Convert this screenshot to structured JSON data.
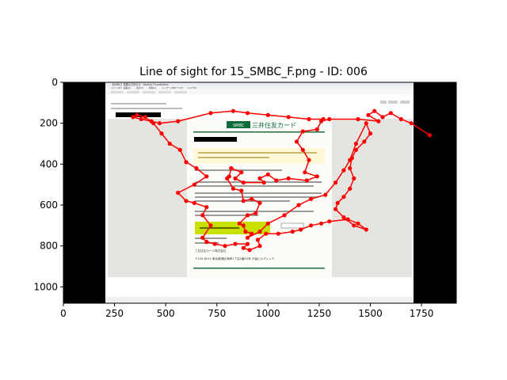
{
  "chart_data": {
    "type": "scatter",
    "title": "Line of sight for 15_SMBC_F.png - ID: 006",
    "xlabel": "",
    "ylabel": "",
    "xlim": [
      0,
      1920
    ],
    "ylim": [
      1080,
      0
    ],
    "y_inverted": true,
    "x_ticks": [
      0,
      250,
      500,
      750,
      1000,
      1250,
      1500,
      1750
    ],
    "x_tick_labels": [
      "0",
      "250",
      "500",
      "750",
      "1000",
      "1250",
      "1500",
      "1750"
    ],
    "y_ticks": [
      0,
      200,
      400,
      600,
      800,
      1000
    ],
    "y_tick_labels": [
      "0",
      "200",
      "400",
      "600",
      "800",
      "1000"
    ],
    "grid": false,
    "series": [
      {
        "color": "#ff0000",
        "marker": "circle",
        "line": true,
        "points": [
          [
            1790,
            258
          ],
          [
            1700,
            200
          ],
          [
            1650,
            180
          ],
          [
            1600,
            150
          ],
          [
            1560,
            170
          ],
          [
            1520,
            140
          ],
          [
            1490,
            160
          ],
          [
            1540,
            190
          ],
          [
            1440,
            180
          ],
          [
            1300,
            180
          ],
          [
            1260,
            190
          ],
          [
            1240,
            230
          ],
          [
            1170,
            240
          ],
          [
            1140,
            290
          ],
          [
            1170,
            330
          ],
          [
            1200,
            380
          ],
          [
            1180,
            440
          ],
          [
            1240,
            460
          ],
          [
            1190,
            480
          ],
          [
            1100,
            470
          ],
          [
            1040,
            480
          ],
          [
            1000,
            450
          ],
          [
            960,
            470
          ],
          [
            980,
            490
          ],
          [
            880,
            490
          ],
          [
            840,
            470
          ],
          [
            870,
            440
          ],
          [
            820,
            420
          ],
          [
            810,
            460
          ],
          [
            800,
            470
          ],
          [
            830,
            520
          ],
          [
            870,
            530
          ],
          [
            880,
            580
          ],
          [
            920,
            570
          ],
          [
            960,
            590
          ],
          [
            940,
            640
          ],
          [
            900,
            650
          ],
          [
            860,
            690
          ],
          [
            880,
            700
          ],
          [
            890,
            730
          ],
          [
            920,
            740
          ],
          [
            900,
            760
          ],
          [
            960,
            730
          ],
          [
            1000,
            690
          ],
          [
            1080,
            650
          ],
          [
            1150,
            600
          ],
          [
            1210,
            570
          ],
          [
            1280,
            550
          ],
          [
            1330,
            490
          ],
          [
            1370,
            430
          ],
          [
            1400,
            380
          ],
          [
            1430,
            300
          ],
          [
            1480,
            200
          ],
          [
            1500,
            250
          ],
          [
            1470,
            290
          ],
          [
            1430,
            330
          ],
          [
            1410,
            370
          ],
          [
            1400,
            420
          ],
          [
            1420,
            470
          ],
          [
            1400,
            520
          ],
          [
            1370,
            560
          ],
          [
            1340,
            590
          ],
          [
            1330,
            620
          ],
          [
            1370,
            660
          ],
          [
            1420,
            700
          ],
          [
            1480,
            720
          ],
          [
            1440,
            690
          ],
          [
            1390,
            670
          ],
          [
            1300,
            680
          ],
          [
            1260,
            690
          ],
          [
            1210,
            700
          ],
          [
            1160,
            720
          ],
          [
            1120,
            730
          ],
          [
            1050,
            740
          ],
          [
            990,
            740
          ],
          [
            950,
            770
          ],
          [
            960,
            800
          ],
          [
            910,
            820
          ],
          [
            880,
            810
          ],
          [
            900,
            790
          ],
          [
            840,
            790
          ],
          [
            790,
            800
          ],
          [
            740,
            790
          ],
          [
            700,
            780
          ],
          [
            680,
            760
          ],
          [
            720,
            700
          ],
          [
            680,
            650
          ],
          [
            700,
            610
          ],
          [
            640,
            590
          ],
          [
            600,
            580
          ],
          [
            560,
            540
          ],
          [
            640,
            500
          ],
          [
            700,
            460
          ],
          [
            650,
            420
          ],
          [
            600,
            390
          ],
          [
            570,
            330
          ],
          [
            520,
            300
          ],
          [
            480,
            250
          ],
          [
            440,
            200
          ],
          [
            400,
            170
          ],
          [
            360,
            160
          ],
          [
            340,
            170
          ],
          [
            380,
            180
          ],
          [
            430,
            190
          ],
          [
            470,
            200
          ],
          [
            560,
            190
          ],
          [
            720,
            150
          ],
          [
            830,
            140
          ],
          [
            900,
            150
          ],
          [
            1000,
            160
          ],
          [
            1100,
            170
          ],
          [
            1200,
            180
          ],
          [
            1270,
            180
          ]
        ]
      }
    ]
  },
  "image": {
    "alt": "Screenshot of an SMBC email in Mozilla Thunderbird",
    "extent_x": [
      205,
      1715
    ],
    "extent_y": [
      0,
      1080
    ],
    "app_title": "【SMBC】重要なお知らせ - Mozilla Thunderbird",
    "menu_items": [
      "ファイル(F)",
      "編集(E)",
      "表示(V)",
      "移動(G)",
      "メッセージ(M)",
      "ツール(T)",
      "ヘルプ(H)"
    ],
    "brand": "三井住友カード",
    "logo_text": "SMBC",
    "footer_company": "三井住友カード株式会社",
    "footer_address": "〒105-8011 東京都港区海岸1丁目2番20号 汐留ビルディング"
  }
}
